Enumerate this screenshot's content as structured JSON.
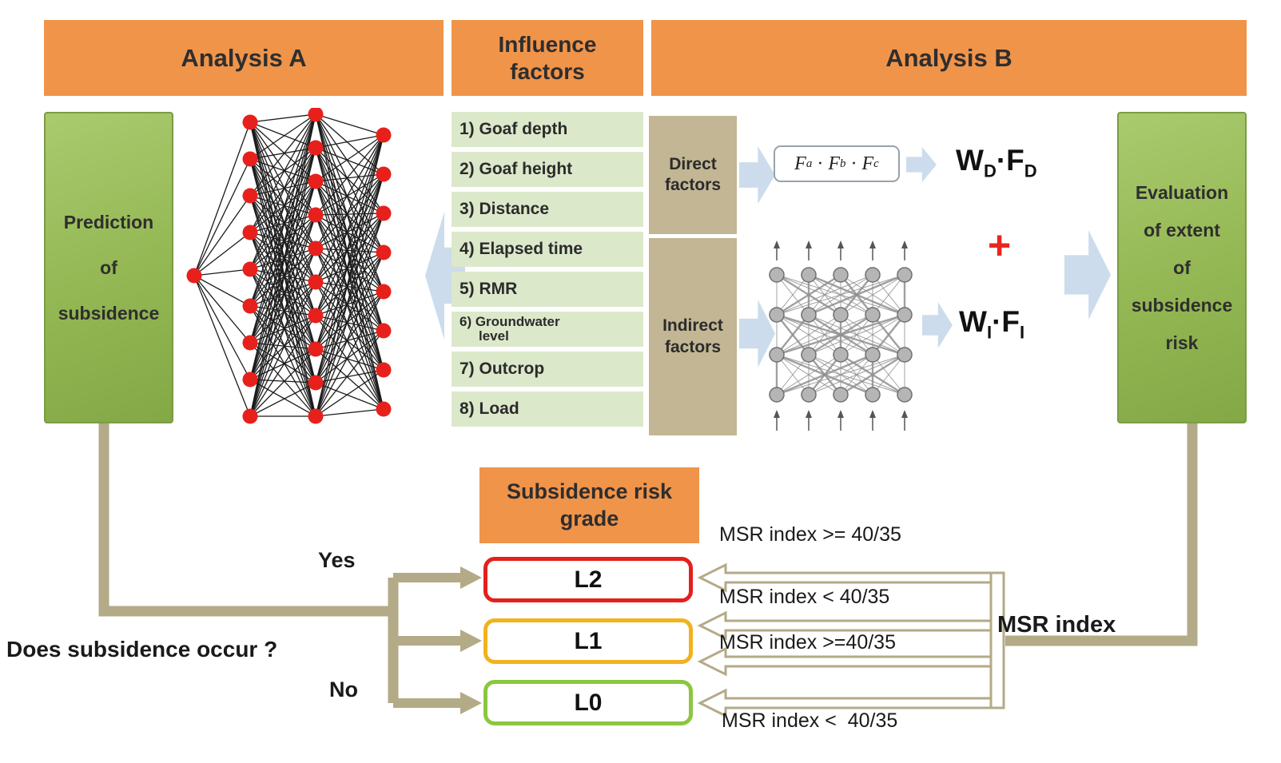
{
  "colors": {
    "orange": "#F0944A",
    "green_box": "#93B753",
    "factor_row": "#DCE8CA",
    "tan_box": "#C2B694",
    "blue_arrow": "#CCDCEC",
    "connector": "#B3AA87",
    "node_red": "#E8201C",
    "plus_red": "#E8251F"
  },
  "headers": {
    "analysis_a": "Analysis A",
    "influence_factors": "Influence\nfactors",
    "analysis_b": "Analysis B"
  },
  "prediction_box": {
    "lines": [
      "Prediction",
      "of",
      "subsidence"
    ]
  },
  "evaluation_box": {
    "lines": [
      "Evaluation",
      "of extent",
      "of",
      "subsidence",
      "risk"
    ]
  },
  "factors": [
    {
      "text": "1) Goaf depth"
    },
    {
      "text": "2) Goaf height"
    },
    {
      "text": "3) Distance"
    },
    {
      "text": "4) Elapsed time"
    },
    {
      "text": "5) RMR"
    },
    {
      "text": "6) Groundwater",
      "text2": "level"
    },
    {
      "text": "7) Outcrop"
    },
    {
      "text": "8) Load"
    }
  ],
  "factor_groups": {
    "direct": "Direct\nfactors",
    "indirect": "Indirect\nfactors"
  },
  "analysis_b": {
    "formula": {
      "f1": "F",
      "s1": "a",
      "dot1": "·",
      "f2": "F",
      "s2": "b",
      "dot2": "·",
      "f3": "F",
      "s3": "c"
    },
    "wd": {
      "t1": "W",
      "sub1": "D",
      "dot": "·",
      "t2": "F",
      "sub2": "D"
    },
    "plus": "+",
    "wi": {
      "t1": "W",
      "sub1": "I",
      "dot": "·",
      "t2": "F",
      "sub2": "I"
    }
  },
  "risk_grade": {
    "title": "Subsidence risk\ngrade",
    "levels": [
      {
        "label": "L2",
        "border": "#E3201C"
      },
      {
        "label": "L1",
        "border": "#F2B21D"
      },
      {
        "label": "L0",
        "border": "#8CC63F"
      }
    ]
  },
  "decision": {
    "question": "Does subsidence occur ?",
    "yes": "Yes",
    "no": "No"
  },
  "msr": {
    "label": "MSR index",
    "conditions": [
      "MSR index >= 40/35",
      "MSR index < 40/35",
      "MSR index >=40/35",
      "MSR index <  40/35"
    ]
  }
}
